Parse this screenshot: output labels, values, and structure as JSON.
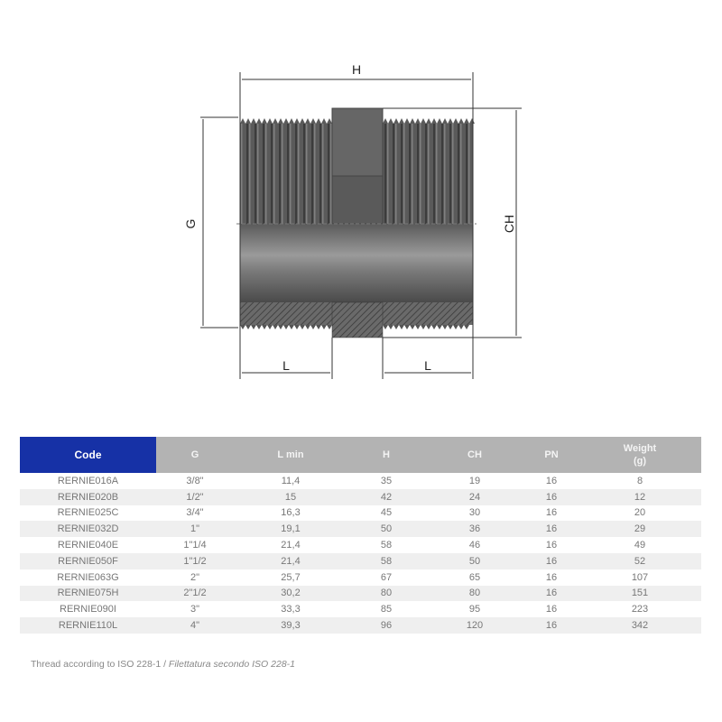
{
  "diagram": {
    "labels": {
      "H": "H",
      "G": "G",
      "CH": "CH",
      "L_left": "L",
      "L_right": "L"
    }
  },
  "table": {
    "headers": {
      "code": "Code",
      "g": "G",
      "lmin": "L min",
      "h": "H",
      "ch": "CH",
      "pn": "PN",
      "weight_line1": "Weight",
      "weight_line2": "(g)"
    },
    "rows": [
      {
        "code": "RERNIE016A",
        "g": "3/8\"",
        "lmin": "11,4",
        "h": "35",
        "ch": "19",
        "pn": "16",
        "weight": "8"
      },
      {
        "code": "RERNIE020B",
        "g": "1/2\"",
        "lmin": "15",
        "h": "42",
        "ch": "24",
        "pn": "16",
        "weight": "12"
      },
      {
        "code": "RERNIE025C",
        "g": "3/4\"",
        "lmin": "16,3",
        "h": "45",
        "ch": "30",
        "pn": "16",
        "weight": "20"
      },
      {
        "code": "RERNIE032D",
        "g": "1\"",
        "lmin": "19,1",
        "h": "50",
        "ch": "36",
        "pn": "16",
        "weight": "29"
      },
      {
        "code": "RERNIE040E",
        "g": "1\"1/4",
        "lmin": "21,4",
        "h": "58",
        "ch": "46",
        "pn": "16",
        "weight": "49"
      },
      {
        "code": "RERNIE050F",
        "g": "1\"1/2",
        "lmin": "21,4",
        "h": "58",
        "ch": "50",
        "pn": "16",
        "weight": "52"
      },
      {
        "code": "RERNIE063G",
        "g": "2\"",
        "lmin": "25,7",
        "h": "67",
        "ch": "65",
        "pn": "16",
        "weight": "107"
      },
      {
        "code": "RERNIE075H",
        "g": "2\"1/2",
        "lmin": "30,2",
        "h": "80",
        "ch": "80",
        "pn": "16",
        "weight": "151"
      },
      {
        "code": "RERNIE090I",
        "g": "3\"",
        "lmin": "33,3",
        "h": "85",
        "ch": "95",
        "pn": "16",
        "weight": "223"
      },
      {
        "code": "RERNIE110L",
        "g": "4\"",
        "lmin": "39,3",
        "h": "96",
        "ch": "120",
        "pn": "16",
        "weight": "342"
      }
    ]
  },
  "note": {
    "english": "Thread according to ISO 228-1 / ",
    "italian": "Filettatura secondo ISO 228-1"
  },
  "colors": {
    "header_code": "#1631a6",
    "header": "#b3b3b3",
    "stripe": "#efefef",
    "body": "#5c5c5c"
  }
}
